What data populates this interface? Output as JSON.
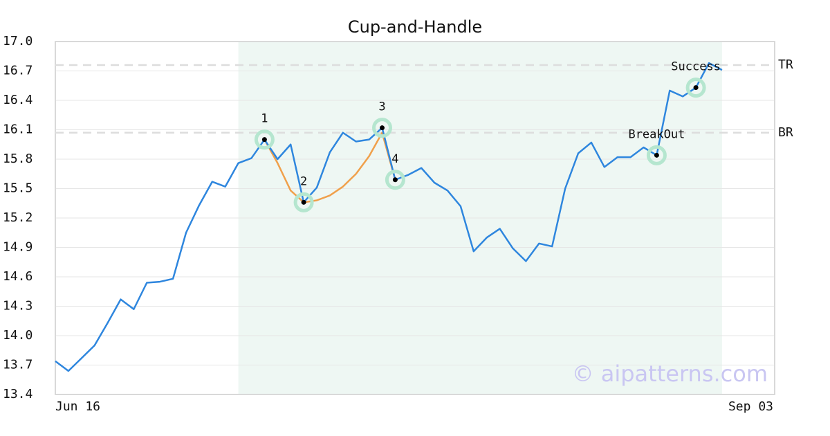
{
  "chart_data": {
    "type": "line",
    "title": "Cup-and-Handle",
    "categories": [
      "Jun 16",
      null,
      null,
      null,
      null,
      null,
      null,
      null,
      null,
      null,
      null,
      null,
      null,
      null,
      null,
      null,
      null,
      null,
      null,
      null,
      null,
      null,
      null,
      null,
      null,
      null,
      null,
      null,
      null,
      null,
      null,
      null,
      null,
      null,
      null,
      null,
      null,
      null,
      null,
      null,
      null,
      null,
      null,
      null,
      null,
      null,
      null,
      null,
      null,
      null,
      null,
      "Sep 03"
    ],
    "series": [
      {
        "color": "#2e86de",
        "values": [
          13.74,
          13.64,
          13.77,
          13.9,
          14.13,
          14.37,
          14.27,
          14.54,
          14.55,
          14.58,
          15.05,
          15.33,
          15.57,
          15.52,
          15.76,
          15.81,
          16.0,
          15.8,
          15.95,
          15.36,
          15.51,
          15.87,
          16.07,
          15.98,
          16.0,
          16.12,
          15.59,
          15.64,
          15.71,
          15.56,
          15.48,
          15.32,
          14.86,
          15.0,
          15.09,
          14.89,
          14.76,
          14.94,
          14.91,
          15.5,
          15.86,
          15.97,
          15.72,
          15.82,
          15.82,
          15.92,
          15.84,
          16.5,
          16.44,
          16.53,
          16.78,
          16.71
        ]
      },
      {
        "color": "#f0a04b",
        "values": [
          null,
          null,
          null,
          null,
          null,
          null,
          null,
          null,
          null,
          null,
          null,
          null,
          null,
          null,
          null,
          null,
          16.0,
          15.76,
          15.48,
          15.36,
          15.38,
          15.43,
          15.52,
          15.65,
          15.83,
          16.07,
          15.59,
          null,
          null,
          null,
          null,
          null,
          null,
          null,
          null,
          null,
          null,
          null,
          null,
          null,
          null,
          null,
          null,
          null,
          null,
          null,
          null,
          null,
          null,
          null,
          null,
          null
        ]
      }
    ],
    "points": [
      {
        "label": "1",
        "index": 16,
        "value": 16.0
      },
      {
        "label": "2",
        "index": 19,
        "value": 15.36
      },
      {
        "label": "3",
        "index": 25,
        "value": 16.12
      },
      {
        "label": "4",
        "index": 26,
        "value": 15.59
      },
      {
        "label": "BreakOut",
        "index": 46,
        "value": 15.84
      },
      {
        "label": "Success",
        "index": 49,
        "value": 16.53
      }
    ],
    "levels": [
      {
        "name": "TR",
        "value": 16.76
      },
      {
        "name": "BR",
        "value": 16.07
      }
    ],
    "highlight": {
      "start": 14,
      "end": 51
    },
    "watermark": "© aipatterns.com",
    "ylim": [
      13.4,
      17.0
    ],
    "yticks": [
      {
        "value": 13.4,
        "label": "13.4"
      },
      {
        "value": 13.7,
        "label": "13.7"
      },
      {
        "value": 14.0,
        "label": "14.0"
      },
      {
        "value": 14.3,
        "label": "14.3"
      },
      {
        "value": 14.6,
        "label": "14.6"
      },
      {
        "value": 14.9,
        "label": "14.9"
      },
      {
        "value": 15.2,
        "label": "15.2"
      },
      {
        "value": 15.5,
        "label": "15.5"
      },
      {
        "value": 15.8,
        "label": "15.8"
      },
      {
        "value": 16.1,
        "label": "16.1"
      },
      {
        "value": 16.4,
        "label": "16.4"
      },
      {
        "value": 16.7,
        "label": "16.7"
      },
      {
        "value": 17.0,
        "label": "17.0"
      }
    ],
    "grid": true
  }
}
